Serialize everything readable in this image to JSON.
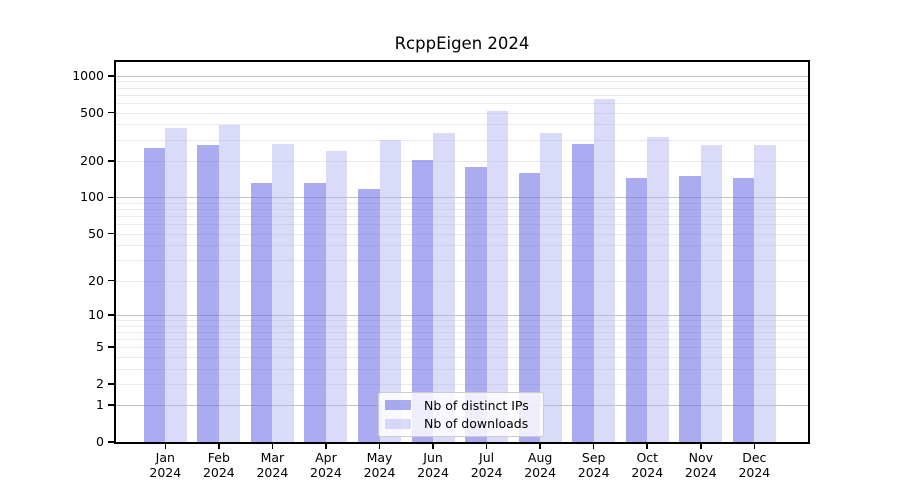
{
  "title": "RcppEigen 2024",
  "colors": {
    "background": "#ffffff",
    "axis": "#000000",
    "major_grid": "#c3c3c3",
    "minor_grid": "#e9e9e9",
    "ips_bar": "#6666E68C",
    "downloads_bar": "#AEAEF273",
    "legend_bg": "#FFFFFFCC",
    "legend_border": "#cccccc"
  },
  "chart_data": {
    "type": "bar",
    "title": "RcppEigen 2024",
    "scale": "log1p",
    "months": [
      "Jan",
      "Feb",
      "Mar",
      "Apr",
      "May",
      "Jun",
      "Jul",
      "Aug",
      "Sep",
      "Oct",
      "Nov",
      "Dec"
    ],
    "year": "2024",
    "series": [
      {
        "name": "Nb of distinct IPs",
        "color": "#6666E68C",
        "values": [
          255,
          270,
          131,
          131,
          117,
          202,
          180,
          159,
          274,
          145,
          151,
          145
        ]
      },
      {
        "name": "Nb of downloads",
        "color": "#AEAEF273",
        "values": [
          376,
          393,
          274,
          241,
          297,
          337,
          512,
          337,
          650,
          313,
          269,
          271
        ]
      }
    ],
    "yticks": [
      0,
      1,
      2,
      5,
      10,
      20,
      50,
      100,
      200,
      500,
      1000
    ],
    "ylim": [
      0,
      1300
    ],
    "xlabel": "",
    "ylabel": "",
    "grid": true,
    "legend_position": "lower center"
  }
}
